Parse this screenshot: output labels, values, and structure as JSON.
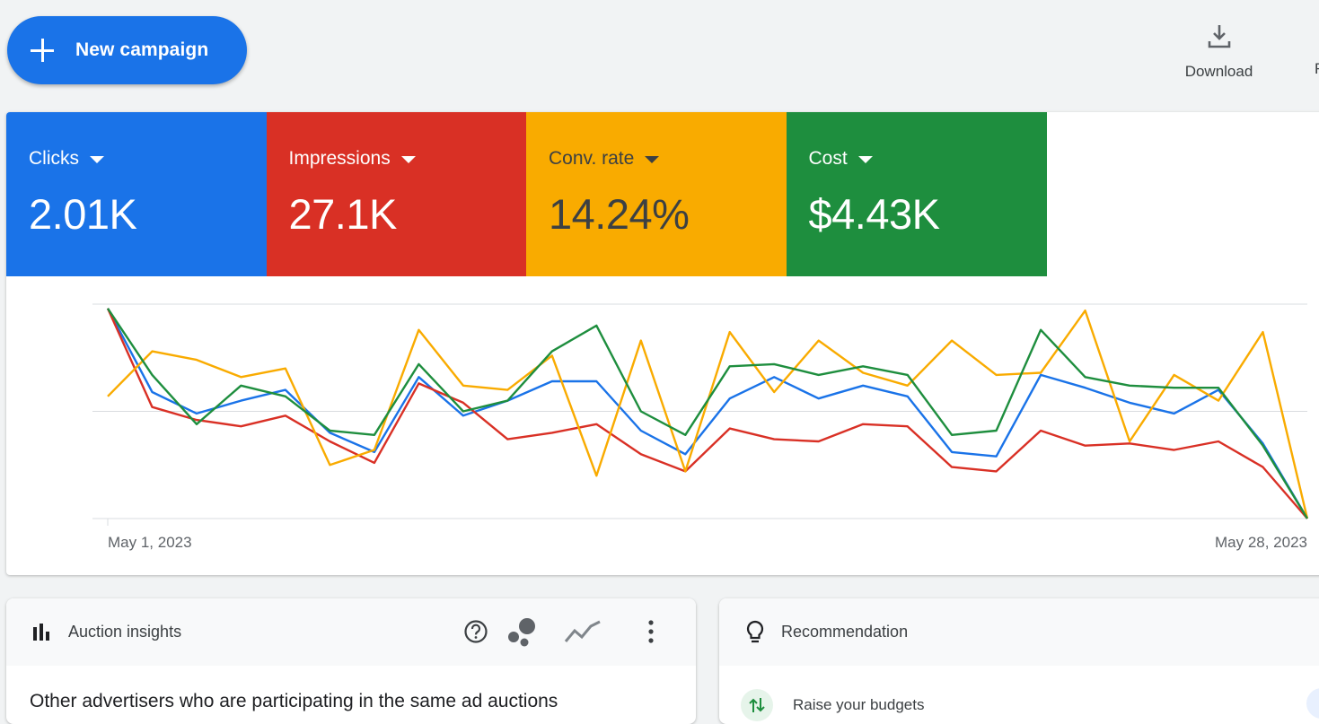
{
  "toolbar": {
    "new_campaign_label": "New campaign",
    "download_label": "Download",
    "cut_label": "F"
  },
  "metrics": [
    {
      "label": "Clicks",
      "value": "2.01K",
      "color": "#1a73e8",
      "text_color": "#ffffff"
    },
    {
      "label": "Impressions",
      "value": "27.1K",
      "color": "#d93025",
      "text_color": "#ffffff"
    },
    {
      "label": "Conv. rate",
      "value": "14.24%",
      "color": "#f9ab00",
      "text_color": "#3c4043"
    },
    {
      "label": "Cost",
      "value": "$4.43K",
      "color": "#1e8e3e",
      "text_color": "#ffffff"
    }
  ],
  "chart_data": {
    "type": "line",
    "x_start_label": "May 1, 2023",
    "x_end_label": "May 28, 2023",
    "x": [
      1,
      2,
      3,
      4,
      5,
      6,
      7,
      8,
      9,
      10,
      11,
      12,
      13,
      14,
      15,
      16,
      17,
      18,
      19,
      20,
      21,
      22,
      23,
      24,
      25,
      26,
      27,
      28
    ],
    "ylim": [
      0,
      100
    ],
    "grid": true,
    "series": [
      {
        "metric": "Clicks",
        "color": "#1a73e8",
        "values": [
          98,
          59,
          49,
          55,
          60,
          40,
          31,
          66,
          48,
          55,
          64,
          64,
          41,
          30,
          56,
          66,
          56,
          62,
          57,
          31,
          29,
          67,
          61,
          54,
          49,
          60,
          35,
          0
        ]
      },
      {
        "metric": "Impressions",
        "color": "#d93025",
        "values": [
          98,
          52,
          46,
          43,
          48,
          36,
          26,
          63,
          54,
          37,
          40,
          44,
          30,
          22,
          42,
          37,
          36,
          44,
          43,
          24,
          22,
          41,
          34,
          35,
          32,
          36,
          24,
          0
        ]
      },
      {
        "metric": "Conv. rate",
        "color": "#f9ab00",
        "values": [
          57,
          78,
          74,
          66,
          70,
          25,
          32,
          88,
          62,
          60,
          76,
          20,
          83,
          22,
          87,
          59,
          83,
          68,
          62,
          83,
          67,
          68,
          97,
          36,
          67,
          55,
          87,
          0
        ]
      },
      {
        "metric": "Cost",
        "color": "#1e8e3e",
        "values": [
          98,
          67,
          44,
          62,
          57,
          41,
          39,
          72,
          50,
          55,
          78,
          90,
          50,
          39,
          71,
          72,
          67,
          71,
          67,
          39,
          41,
          88,
          66,
          62,
          61,
          61,
          34,
          0
        ]
      }
    ]
  },
  "auction": {
    "title": "Auction insights",
    "body": "Other advertisers who are participating in the same ad auctions"
  },
  "recommendation": {
    "title": "Recommendation",
    "item": "Raise your budgets"
  }
}
